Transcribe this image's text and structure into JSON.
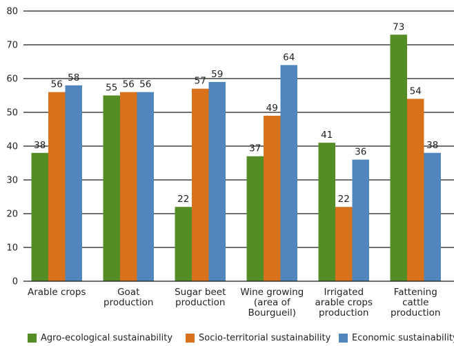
{
  "chart_data": {
    "type": "bar",
    "title": "",
    "xlabel": "",
    "ylabel": "",
    "ylim": [
      0,
      80
    ],
    "yticks": [
      0,
      10,
      20,
      30,
      40,
      50,
      60,
      70,
      80
    ],
    "grid": true,
    "legend_position": "bottom",
    "categories": [
      [
        "Arable crops"
      ],
      [
        "Goat",
        "production"
      ],
      [
        "Sugar beet",
        "production"
      ],
      [
        "Wine growing",
        "(area of",
        "Bourgueil)"
      ],
      [
        "Irrigated",
        "arable crops",
        "production"
      ],
      [
        "Fattening",
        "cattle",
        "production"
      ]
    ],
    "series": [
      {
        "name": "Agro-ecological sustainability",
        "color": "#548c26",
        "values": [
          38,
          55,
          22,
          37,
          41,
          73
        ]
      },
      {
        "name": "Socio-territorial sustainability",
        "color": "#d7711c",
        "values": [
          56,
          56,
          57,
          49,
          22,
          54
        ]
      },
      {
        "name": "Economic sustainability",
        "color": "#4f86bd",
        "values": [
          58,
          56,
          59,
          64,
          36,
          38
        ]
      }
    ]
  }
}
